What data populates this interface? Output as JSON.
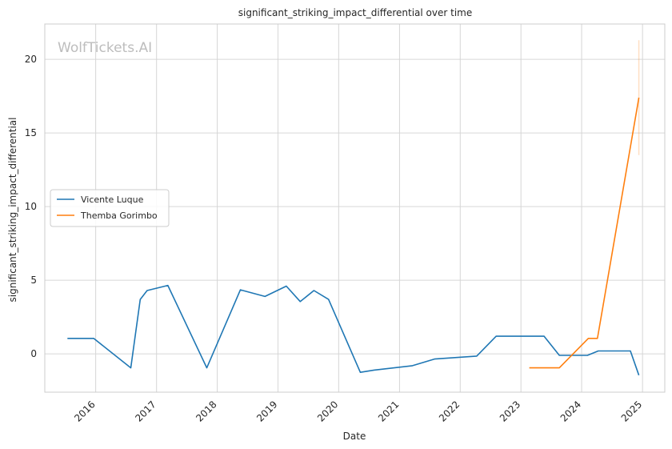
{
  "chart_data": {
    "type": "line",
    "title": "significant_striking_impact_differential over time",
    "xlabel": "Date",
    "ylabel": "significant_striking_impact_differential",
    "watermark": "WolfTickets.AI",
    "grid": true,
    "legend_placement": "center-left",
    "xlim": [
      "2015-03-01",
      "2025-05-15"
    ],
    "ylim": [
      -2.6,
      22.4
    ],
    "x_ticks": [
      "2016",
      "2017",
      "2018",
      "2019",
      "2020",
      "2021",
      "2022",
      "2023",
      "2024",
      "2025"
    ],
    "y_ticks": [
      "0",
      "5",
      "10",
      "15",
      "20"
    ],
    "series": [
      {
        "name": "Vicente Luque",
        "color": "#1f77b4",
        "points": [
          {
            "x": "2015-07-15",
            "y": 1.05
          },
          {
            "x": "2015-12-20",
            "y": 1.05
          },
          {
            "x": "2016-07-30",
            "y": -0.95
          },
          {
            "x": "2016-09-25",
            "y": 3.7
          },
          {
            "x": "2016-11-05",
            "y": 4.3
          },
          {
            "x": "2017-03-10",
            "y": 4.65
          },
          {
            "x": "2017-10-30",
            "y": -0.95
          },
          {
            "x": "2018-05-20",
            "y": 4.35
          },
          {
            "x": "2018-10-15",
            "y": 3.9
          },
          {
            "x": "2019-02-20",
            "y": 4.6
          },
          {
            "x": "2019-05-15",
            "y": 3.55
          },
          {
            "x": "2019-08-05",
            "y": 4.3
          },
          {
            "x": "2019-11-01",
            "y": 3.7
          },
          {
            "x": "2020-05-10",
            "y": -1.25
          },
          {
            "x": "2020-08-01",
            "y": -1.1
          },
          {
            "x": "2021-03-20",
            "y": -0.8
          },
          {
            "x": "2021-07-30",
            "y": -0.35
          },
          {
            "x": "2022-04-10",
            "y": -0.15
          },
          {
            "x": "2022-08-05",
            "y": 1.2
          },
          {
            "x": "2023-05-20",
            "y": 1.2
          },
          {
            "x": "2023-08-20",
            "y": -0.1
          },
          {
            "x": "2024-02-05",
            "y": -0.1
          },
          {
            "x": "2024-04-10",
            "y": 0.2
          },
          {
            "x": "2024-10-20",
            "y": 0.2
          },
          {
            "x": "2024-12-10",
            "y": -1.45
          }
        ]
      },
      {
        "name": "Themba Gorimbo",
        "color": "#ff7f0e",
        "points": [
          {
            "x": "2023-02-20",
            "y": -0.95
          },
          {
            "x": "2023-08-20",
            "y": -0.95
          },
          {
            "x": "2024-02-10",
            "y": 1.05
          },
          {
            "x": "2024-04-05",
            "y": 1.05
          },
          {
            "x": "2024-06-01",
            "y": 4.8
          },
          {
            "x": "2024-12-10",
            "y": 17.4
          }
        ]
      }
    ],
    "error_band": {
      "x": "2024-12-10",
      "y_low": 13.5,
      "y_high": 21.3,
      "color": "#ff7f0e"
    }
  }
}
